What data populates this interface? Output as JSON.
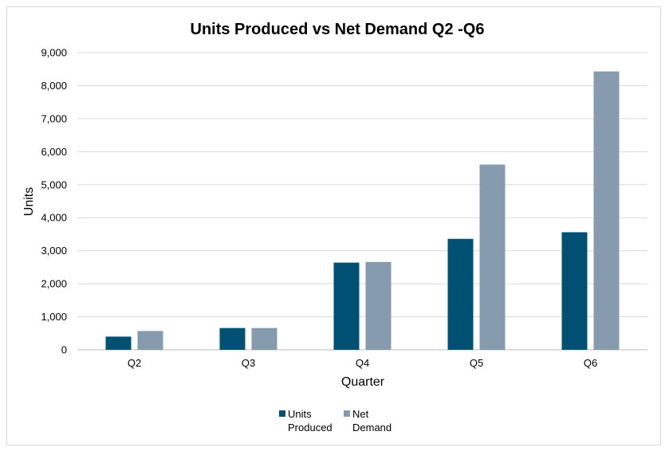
{
  "chart_data": {
    "type": "bar",
    "title": "Units Produced vs Net Demand Q2 -Q6",
    "xlabel": "Quarter",
    "ylabel": "Units",
    "categories": [
      "Q2",
      "Q3",
      "Q4",
      "Q5",
      "Q6"
    ],
    "ylim": [
      0,
      9000
    ],
    "yticks": [
      "0",
      "1,000",
      "2,000",
      "3,000",
      "4,000",
      "5,000",
      "6,000",
      "7,000",
      "8,000",
      "9,000"
    ],
    "grid": true,
    "legend_position": "bottom",
    "series": [
      {
        "name": "Units Produced",
        "color": "#005073",
        "values": [
          400,
          660,
          2640,
          3360,
          3560
        ]
      },
      {
        "name": "Net Demand",
        "color": "#869bae",
        "values": [
          570,
          660,
          2660,
          5610,
          8430
        ]
      }
    ]
  }
}
